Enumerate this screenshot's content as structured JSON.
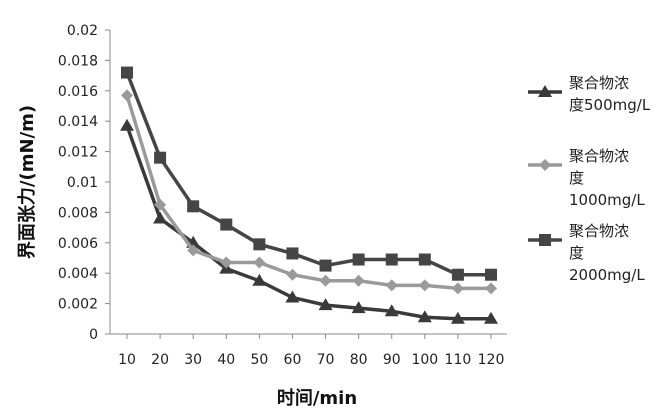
{
  "chart_data": {
    "type": "line",
    "title": "",
    "xlabel": "时间/min",
    "ylabel": "界面张力/(mN/m)",
    "x": [
      10,
      20,
      30,
      40,
      50,
      60,
      70,
      80,
      90,
      100,
      110,
      120
    ],
    "ylim": [
      0,
      0.02
    ],
    "yticks": [
      "0",
      "0.002",
      "0.004",
      "0.006",
      "0.008",
      "0.01",
      "0.012",
      "0.014",
      "0.016",
      "0.018",
      "0.02"
    ],
    "grid": false,
    "legend_position": "right",
    "series": [
      {
        "name": "聚合物浓度500mg/L",
        "legend_lines": [
          "聚合物浓",
          "度500mg/L"
        ],
        "marker": "triangle",
        "color": "#3a3a3a",
        "values": [
          0.0137,
          0.0076,
          0.006,
          0.0043,
          0.0035,
          0.0024,
          0.0019,
          0.0017,
          0.0015,
          0.0011,
          0.001,
          0.001
        ]
      },
      {
        "name": "聚合物浓度1000mg/L",
        "legend_lines": [
          "聚合物浓",
          "度",
          "1000mg/L"
        ],
        "marker": "diamond",
        "color": "#9a9a9a",
        "values": [
          0.0157,
          0.0085,
          0.0055,
          0.0047,
          0.0047,
          0.0039,
          0.0035,
          0.0035,
          0.0032,
          0.0032,
          0.003,
          0.003
        ]
      },
      {
        "name": "聚合物浓度2000mg/L",
        "legend_lines": [
          "聚合物浓",
          "度",
          "2000mg/L"
        ],
        "marker": "square",
        "color": "#454545",
        "values": [
          0.0172,
          0.0116,
          0.0084,
          0.0072,
          0.0059,
          0.0053,
          0.0045,
          0.0049,
          0.0049,
          0.0049,
          0.0039,
          0.0039
        ]
      }
    ]
  }
}
